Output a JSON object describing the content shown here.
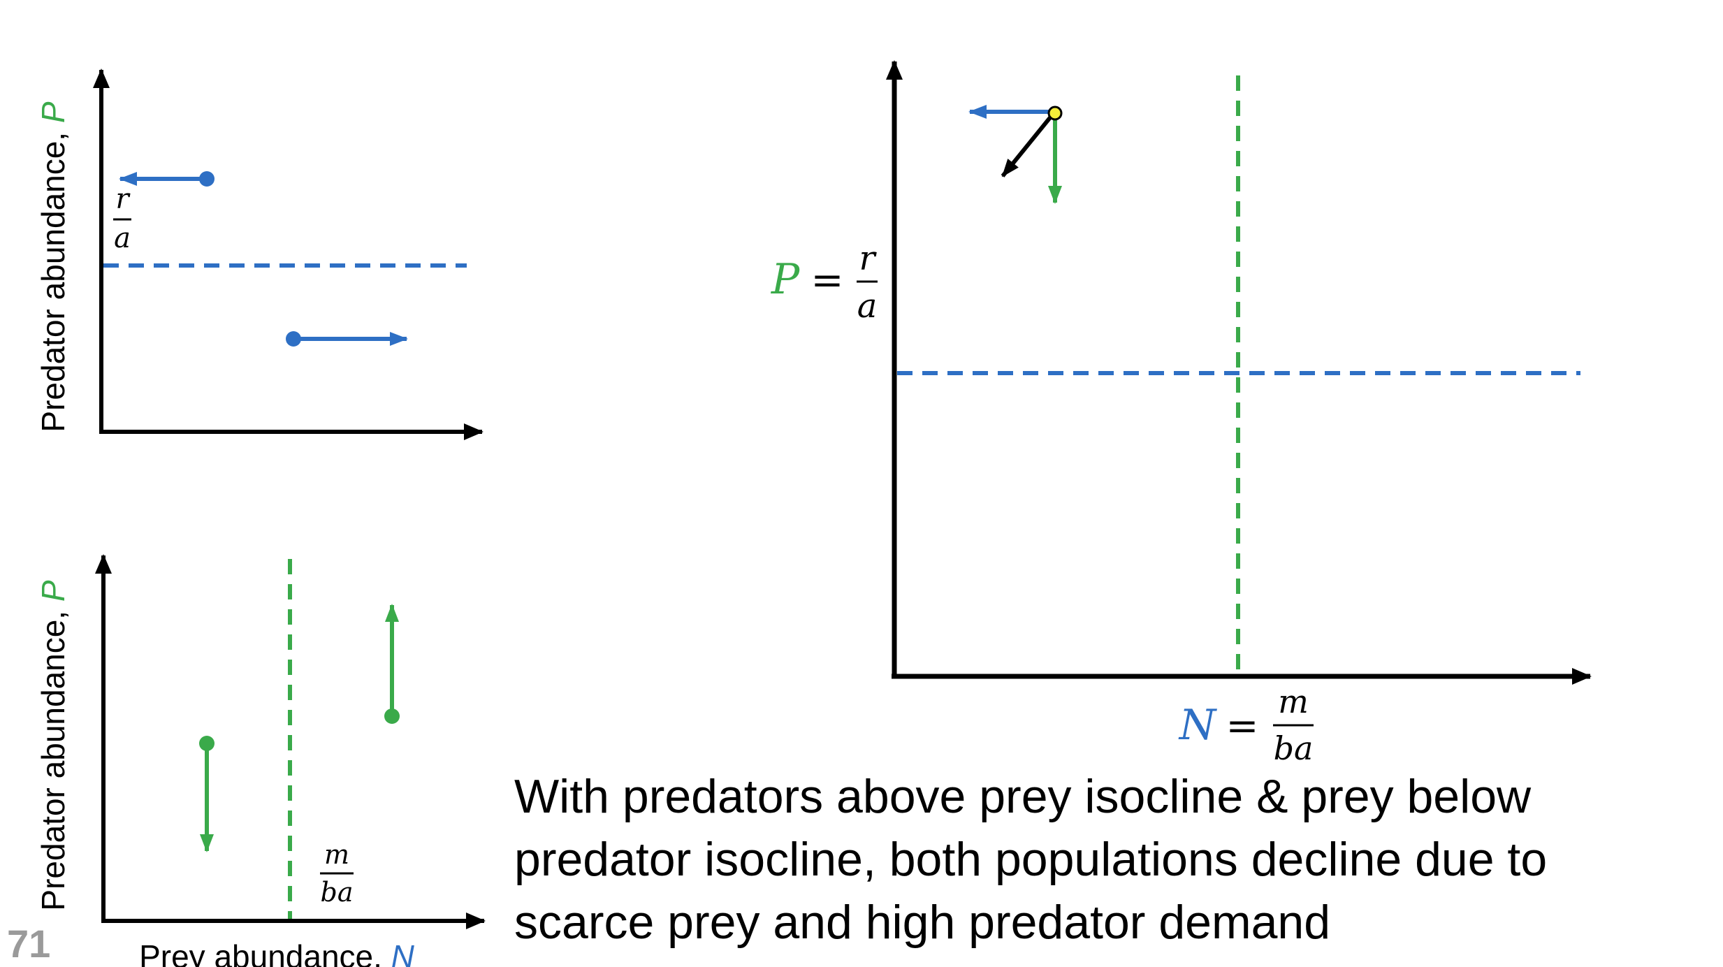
{
  "colors": {
    "prey": "#2e6fc4",
    "predator": "#3aaa4a",
    "axis": "#000000",
    "marker": "#f5ee3a",
    "page_number": "#9a9a9a"
  },
  "top_left_panel": {
    "y_label_text": "Predator abundance, ",
    "y_label_var": "P",
    "isocline_num": "r",
    "isocline_den": "a"
  },
  "bottom_left_panel": {
    "y_label_text": "Predator abundance, ",
    "y_label_var": "P",
    "x_label_text": "Prey abundance, ",
    "x_label_var": "N",
    "isocline_num": "m",
    "isocline_den": "ba"
  },
  "main_panel": {
    "prey_isocline_lhs": "P",
    "prey_isocline_eq": "=",
    "prey_isocline_num": "r",
    "prey_isocline_den": "a",
    "pred_isocline_lhs": "N",
    "pred_isocline_eq": "=",
    "pred_isocline_num": "m",
    "pred_isocline_den": "ba"
  },
  "caption": {
    "line1": "With predators above prey isocline & prey below",
    "line2": "predator isocline, both populations decline due to",
    "line3": "scarce prey and high predator demand"
  },
  "page_number": "71"
}
